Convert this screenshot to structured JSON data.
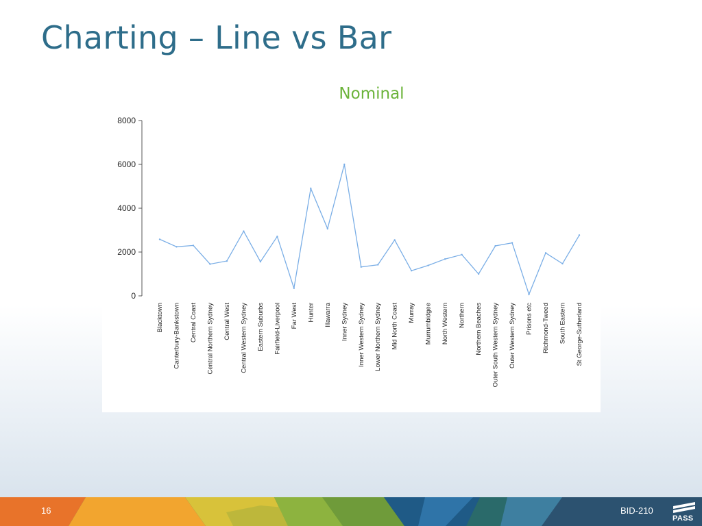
{
  "slide": {
    "title": "Charting – Line vs Bar",
    "page_number": "16",
    "deck_code": "BID-210",
    "logo_text": "PASS"
  },
  "chart_data": {
    "type": "line",
    "title": "Nominal",
    "xlabel": "",
    "ylabel": "",
    "ylim": [
      0,
      8000
    ],
    "yticks": [
      0,
      2000,
      4000,
      6000,
      8000
    ],
    "grid": false,
    "line_color": "#7aaee6",
    "categories": [
      "Blacktown",
      "Canterbury-Bankstown",
      "Central Coast",
      "Central Northern Sydney",
      "Central West",
      "Central Western Sydney",
      "Eastern Suburbs",
      "Fairfield-Liverpool",
      "Far West",
      "Hunter",
      "Illawarra",
      "Inner Sydney",
      "Inner Western Sydney",
      "Lower Northern Sydney",
      "Mid North Coast",
      "Murray",
      "Murrumbidgee",
      "North Western",
      "Northern",
      "Northern Beaches",
      "Outer South Western Sydney",
      "Outer Western Sydney",
      "Prisons etc",
      "Richmond-Tweed",
      "South Eastern",
      "St George-Sutherland"
    ],
    "values": [
      2580,
      2240,
      2300,
      1450,
      1590,
      2950,
      1560,
      2710,
      350,
      4900,
      3070,
      6000,
      1320,
      1420,
      2550,
      1150,
      1390,
      1680,
      1880,
      1000,
      2280,
      2420,
      70,
      1960,
      1470,
      2770
    ]
  }
}
